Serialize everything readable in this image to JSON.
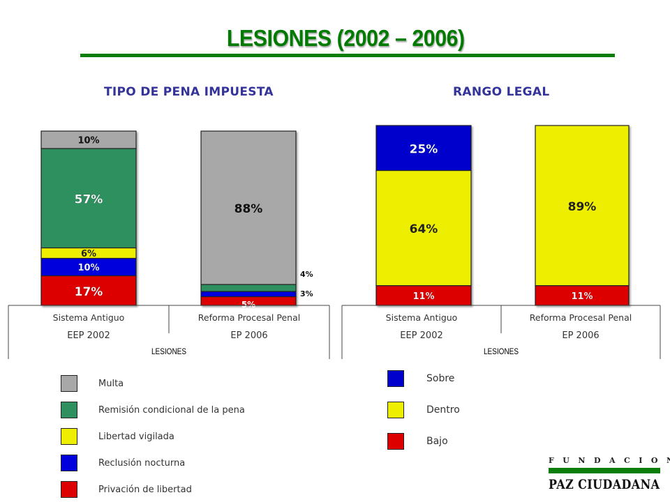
{
  "title": "LESIONES (2002 – 2006)",
  "chart_data": [
    {
      "type": "bar",
      "stacked": true,
      "title": "TIPO DE PENA IMPUESTA",
      "xlabel": "LESIONES",
      "categories": [
        {
          "line1": "Sistema Antiguo",
          "line2": "EEP 2002"
        },
        {
          "line1": "Reforma Procesal Penal",
          "line2": "EP 2006"
        }
      ],
      "ylim": [
        0,
        100
      ],
      "series": [
        {
          "name": "Privación de libertad",
          "color": "#dd0000",
          "values": [
            17,
            5
          ],
          "labels": [
            "17%",
            "5%"
          ]
        },
        {
          "name": "Reclusión nocturna",
          "color": "#0000dd",
          "values": [
            10,
            3
          ],
          "labels": [
            "10%",
            "3%"
          ]
        },
        {
          "name": "Libertad vigilada",
          "color": "#eeee00",
          "values": [
            6,
            0
          ],
          "labels": [
            "6%",
            ""
          ]
        },
        {
          "name": "Remisión condicional de la pena",
          "color": "#2f8f5f",
          "values": [
            57,
            4
          ],
          "labels": [
            "57%",
            "4%"
          ]
        },
        {
          "name": "Multa",
          "color": "#a8a8a8",
          "values": [
            10,
            88
          ],
          "labels": [
            "10%",
            "88%"
          ]
        }
      ],
      "legend_order": [
        "Multa",
        "Remisión condicional de la pena",
        "Libertad vigilada",
        "Reclusión nocturna",
        "Privación de libertad"
      ]
    },
    {
      "type": "bar",
      "stacked": true,
      "title": "RANGO LEGAL",
      "xlabel": "LESIONES",
      "categories": [
        {
          "line1": "Sistema Antiguo",
          "line2": "EEP 2002"
        },
        {
          "line1": "Reforma Procesal Penal",
          "line2": "EP 2006"
        }
      ],
      "ylim": [
        0,
        100
      ],
      "series": [
        {
          "name": "Bajo",
          "color": "#dd0000",
          "values": [
            11,
            11
          ],
          "labels": [
            "11%",
            "11%"
          ]
        },
        {
          "name": "Dentro",
          "color": "#eeee00",
          "values": [
            64,
            89
          ],
          "labels": [
            "64%",
            "89%"
          ]
        },
        {
          "name": "Sobre",
          "color": "#0000cc",
          "values": [
            25,
            0
          ],
          "labels": [
            "25%",
            ""
          ]
        }
      ],
      "legend_order": [
        "Sobre",
        "Dentro",
        "Bajo"
      ]
    }
  ],
  "logo": {
    "top": "FUNDACION",
    "bottom": "PAZ CIUDADANA"
  }
}
